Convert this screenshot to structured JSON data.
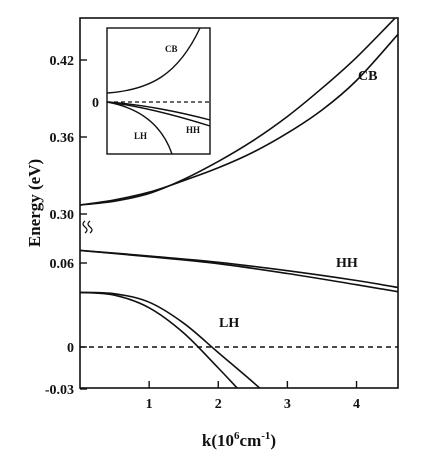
{
  "chart_data": {
    "type": "line",
    "title": "",
    "xlabel": "k(10",
    "xlabel_exp": "6",
    "xlabel_unit": "cm",
    "xlabel_unit_exp": "-1",
    "xlabel_close": ")",
    "ylabel": "Energy (eV)",
    "xlim": [
      0,
      4.6
    ],
    "x_ticks": [
      "1",
      "2",
      "3",
      "4"
    ],
    "x_tick_values": [
      1,
      2,
      3,
      4
    ],
    "y_break": true,
    "y_ticks_upper": [
      "0.30",
      "0.36",
      "0.42"
    ],
    "y_tick_values_upper": [
      0.3,
      0.36,
      0.42
    ],
    "y_ticks_lower": [
      "-0.03",
      "0",
      "0.06"
    ],
    "y_tick_values_lower": [
      -0.03,
      0,
      0.06
    ],
    "fermi_level": 0,
    "series": [
      {
        "name": "CB",
        "segment": "upper",
        "lines": [
          {
            "x": [
              0,
              0.5,
              1.0,
              1.5,
              2.0,
              2.5,
              3.0,
              3.5,
              4.0,
              4.6
            ],
            "y": [
              0.307,
              0.31,
              0.316,
              0.327,
              0.341,
              0.357,
              0.376,
              0.398,
              0.422,
              0.455
            ]
          },
          {
            "x": [
              0,
              0.5,
              1.0,
              1.5,
              2.0,
              2.5,
              3.0,
              3.5,
              4.0,
              4.6
            ],
            "y": [
              0.307,
              0.311,
              0.317,
              0.326,
              0.336,
              0.348,
              0.363,
              0.381,
              0.404,
              0.44
            ]
          }
        ]
      },
      {
        "name": "HH",
        "segment": "lower",
        "lines": [
          {
            "x": [
              0,
              1,
              2,
              3,
              4,
              4.6
            ],
            "y": [
              0.069,
              0.0645,
              0.0595,
              0.0525,
              0.0445,
              0.0395
            ]
          },
          {
            "x": [
              0,
              1,
              2,
              3,
              4,
              4.6
            ],
            "y": [
              0.069,
              0.065,
              0.0605,
              0.0545,
              0.0475,
              0.0425
            ]
          }
        ]
      },
      {
        "name": "LH",
        "segment": "lower",
        "lines": [
          {
            "x": [
              0,
              0.5,
              1.0,
              1.5,
              2.0,
              2.5,
              2.75
            ],
            "y": [
              0.039,
              0.038,
              0.032,
              0.017,
              -0.004,
              -0.025,
              -0.036
            ]
          },
          {
            "x": [
              0,
              0.5,
              1.0,
              1.5,
              2.0,
              2.4
            ],
            "y": [
              0.039,
              0.037,
              0.028,
              0.01,
              -0.015,
              -0.036
            ]
          }
        ]
      }
    ],
    "inset": {
      "zero_label": "0",
      "labels": {
        "cb": "CB",
        "hh": "HH",
        "lh": "LH"
      }
    }
  }
}
